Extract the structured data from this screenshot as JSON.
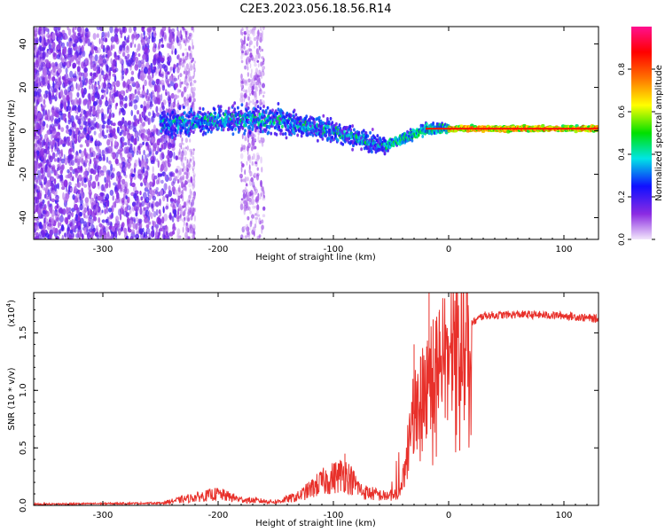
{
  "title": "C2E3.2023.056.18.56.R14",
  "chart_data": [
    {
      "type": "heatmap",
      "xlabel": "Height of straight line (km)",
      "ylabel": "Frequency (Hz)",
      "xlim": [
        -360,
        130
      ],
      "ylim": [
        -50,
        48
      ],
      "xticks": [
        -300,
        -200,
        -100,
        0,
        100
      ],
      "yticks": [
        -40,
        -20,
        0,
        20,
        40
      ],
      "colorbar": {
        "label": "Normalized spectral amplitude",
        "range": [
          0.0,
          1.0
        ],
        "ticks": [
          0.0,
          0.2,
          0.4,
          0.6,
          0.8
        ],
        "tick_labels": [
          "0.0",
          "0.2",
          "0.4",
          "0.6",
          "0.8"
        ],
        "colors": [
          "#f2e6fb",
          "#8b2be2",
          "#1010ff",
          "#00e5e5",
          "#00e000",
          "#ffff00",
          "#ff7000",
          "#ff0000",
          "#ff1090"
        ]
      },
      "ridge": {
        "description_points": [
          {
            "x": -245,
            "f": 3
          },
          {
            "x": -200,
            "f": 5
          },
          {
            "x": -150,
            "f": 5
          },
          {
            "x": -100,
            "f": 0
          },
          {
            "x": -55,
            "f": -7
          },
          {
            "x": -40,
            "f": -4
          },
          {
            "x": -20,
            "f": 1
          },
          {
            "x": 0,
            "f": 1
          },
          {
            "x": 50,
            "f": 1
          },
          {
            "x": 130,
            "f": 1
          }
        ]
      }
    },
    {
      "type": "line",
      "xlabel": "Height of straight line (km)",
      "ylabel": "SNR (10 * v/v)",
      "multiplier_label": "(x10",
      "multiplier_exp": "4",
      "multiplier_close": ")",
      "xlim": [
        -360,
        130
      ],
      "ylim": [
        0,
        1.85
      ],
      "xticks": [
        -300,
        -200,
        -100,
        0,
        100
      ],
      "yticks": [
        0.0,
        0.5,
        1.0,
        1.5
      ],
      "ytick_labels": [
        "0.0",
        "0.5",
        "1.0",
        "1.5"
      ],
      "line_color": "#e8302a",
      "series_outline": [
        {
          "x": -360,
          "y": 0.01
        },
        {
          "x": -250,
          "y": 0.02
        },
        {
          "x": -220,
          "y": 0.07
        },
        {
          "x": -200,
          "y": 0.1
        },
        {
          "x": -180,
          "y": 0.05
        },
        {
          "x": -150,
          "y": 0.03
        },
        {
          "x": -130,
          "y": 0.08
        },
        {
          "x": -110,
          "y": 0.2
        },
        {
          "x": -90,
          "y": 0.28
        },
        {
          "x": -75,
          "y": 0.12
        },
        {
          "x": -55,
          "y": 0.08
        },
        {
          "x": -45,
          "y": 0.1
        },
        {
          "x": -38,
          "y": 0.3
        },
        {
          "x": -32,
          "y": 0.75
        },
        {
          "x": -25,
          "y": 0.9
        },
        {
          "x": -15,
          "y": 1.1
        },
        {
          "x": -5,
          "y": 1.25
        },
        {
          "x": 5,
          "y": 1.4
        },
        {
          "x": 15,
          "y": 1.55
        },
        {
          "x": 30,
          "y": 1.65
        },
        {
          "x": 60,
          "y": 1.66
        },
        {
          "x": 100,
          "y": 1.65
        },
        {
          "x": 130,
          "y": 1.62
        }
      ],
      "spikes": [
        {
          "x": -17,
          "y": 1.85
        },
        {
          "x": -30,
          "y": 1.4
        },
        {
          "x": -8,
          "y": 1.7
        },
        {
          "x": -90,
          "y": 0.45
        }
      ]
    }
  ]
}
